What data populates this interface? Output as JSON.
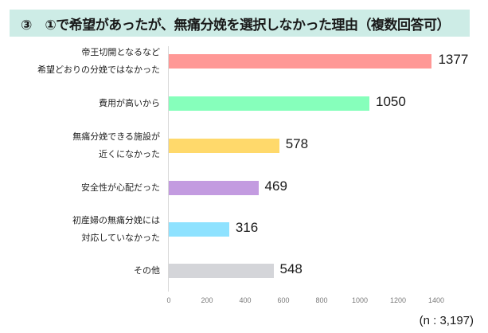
{
  "header": {
    "title": "③　①で希望があったが、無痛分娩を選択しなかった理由（複数回答可）"
  },
  "chart_data": {
    "type": "bar",
    "orientation": "horizontal",
    "title": "③　①で希望があったが、無痛分娩を選択しなかった理由（複数回答可）",
    "categories": [
      "帝王切開となるなど\n希望どおりの分娩ではなかった",
      "費用が高いから",
      "無痛分娩できる施設が\n近くになかった",
      "安全性が心配だった",
      "初産婦の無痛分娩には\n対応していなかった",
      "その他"
    ],
    "values": [
      1377,
      1050,
      578,
      469,
      316,
      548
    ],
    "colors": [
      "#ff9896",
      "#86ffbb",
      "#ffd96b",
      "#c39be0",
      "#8ee2ff",
      "#d4d5d9"
    ],
    "xlabel": "",
    "ylabel": "",
    "xlim": [
      0,
      1400
    ],
    "xticks": [
      "0",
      "200",
      "400",
      "600",
      "800",
      "1000",
      "1200",
      "1400"
    ],
    "grid": false,
    "legend": null,
    "annotation": "(n : 3,197)"
  },
  "rows": [
    {
      "line1": "帝王切開となるなど",
      "line2": "希望どおりの分娩ではなかった",
      "value": "1377"
    },
    {
      "line1": "費用が高いから",
      "line2": "",
      "value": "1050"
    },
    {
      "line1": "無痛分娩できる施設が",
      "line2": "近くになかった",
      "value": "578"
    },
    {
      "line1": "安全性が心配だった",
      "line2": "",
      "value": "469"
    },
    {
      "line1": "初産婦の無痛分娩には",
      "line2": "対応していなかった",
      "value": "316"
    },
    {
      "line1": "その他",
      "line2": "",
      "value": "548"
    }
  ],
  "axis": {
    "ticks": [
      "0",
      "200",
      "400",
      "600",
      "800",
      "1000",
      "1200",
      "1400"
    ]
  },
  "footer": {
    "sample_size": "(n : 3,197)"
  }
}
